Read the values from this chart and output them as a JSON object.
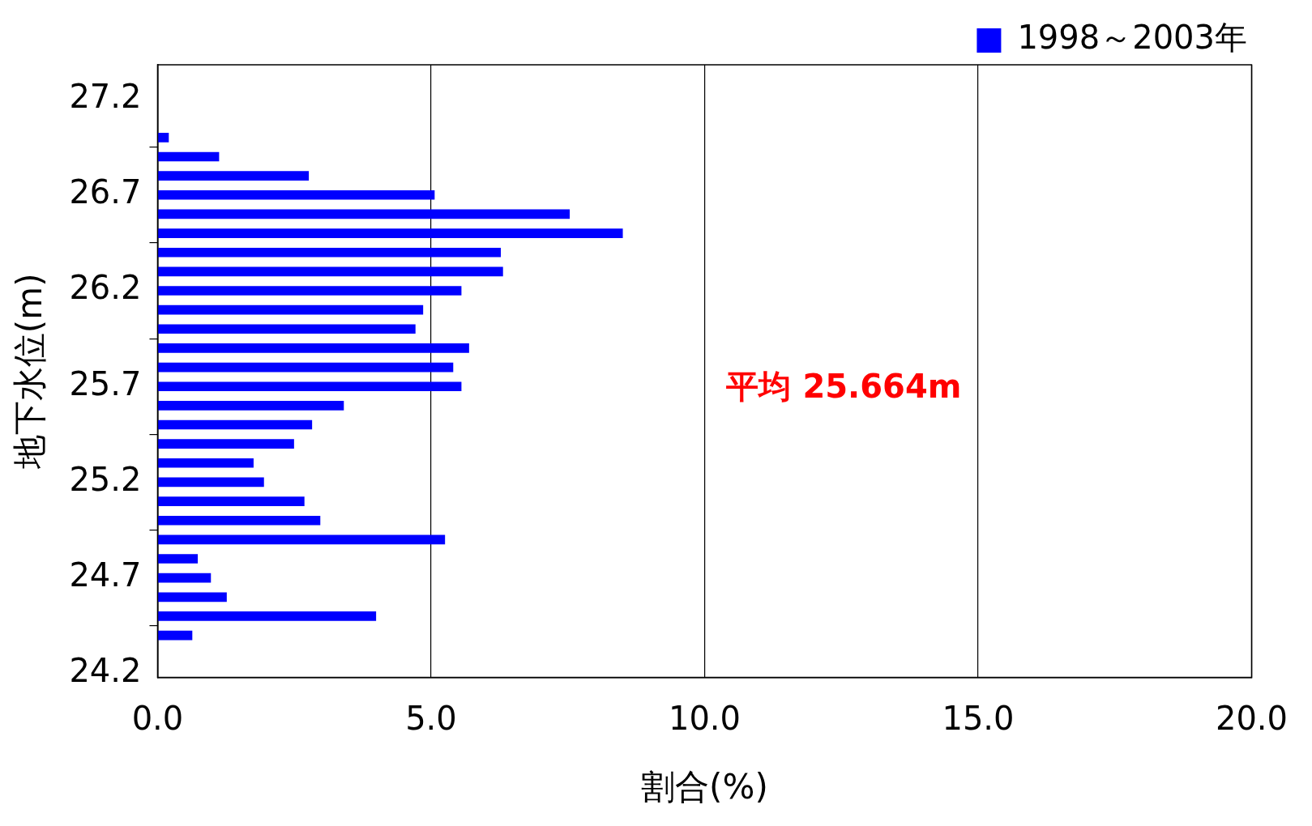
{
  "chart_data": {
    "type": "histogram",
    "orientation": "horizontal",
    "bins": [
      24.35,
      24.45,
      24.55,
      24.65,
      24.75,
      24.85,
      24.95,
      25.05,
      25.15,
      25.25,
      25.35,
      25.45,
      25.55,
      25.65,
      25.75,
      25.85,
      25.95,
      26.05,
      26.15,
      26.25,
      26.35,
      26.45,
      26.55,
      26.65,
      26.75,
      26.85,
      26.95,
      27.05
    ],
    "series": [
      {
        "name": "1998～2003年",
        "color": "#0000ff",
        "values": [
          0.63,
          3.99,
          1.26,
          0.97,
          0.73,
          5.25,
          2.97,
          2.68,
          1.94,
          1.75,
          2.49,
          2.82,
          3.4,
          5.55,
          5.4,
          5.69,
          4.71,
          4.85,
          5.55,
          6.31,
          6.27,
          8.5,
          7.53,
          5.06,
          2.76,
          1.12,
          0.2
        ]
      }
    ],
    "xlabel": "割合(%)",
    "ylabel": "地下水位(m)",
    "xlim": [
      0,
      20
    ],
    "xticks": [
      {
        "value": 0,
        "label": "0.0"
      },
      {
        "value": 5,
        "label": "5.0"
      },
      {
        "value": 10,
        "label": "10.0"
      },
      {
        "value": 15,
        "label": "15.0"
      },
      {
        "value": 20,
        "label": "20.0"
      }
    ],
    "ylim": [
      24.18,
      27.38
    ],
    "yticks": [
      24.2,
      24.7,
      25.2,
      25.7,
      26.2,
      26.7,
      27.2
    ],
    "grid": "x",
    "legend": "top right",
    "annotations": [
      "平均 25.664m"
    ]
  }
}
